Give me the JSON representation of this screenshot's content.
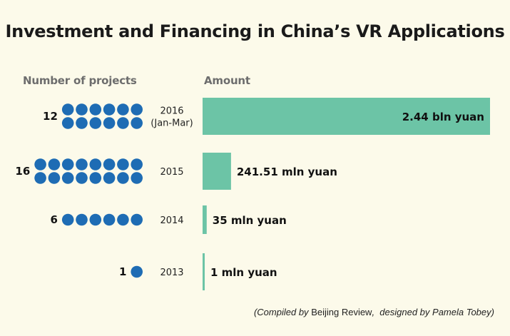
{
  "title": "Investment and Financing in China’s VR Applications",
  "headers": {
    "projects": "Number of projects",
    "amount": "Amount"
  },
  "credit": {
    "compiled_prefix": "(Compiled by",
    "source": "Beijing Review",
    "designed_by": "designed by Pamela Tobey",
    "suffix": ")"
  },
  "colors": {
    "dot": "#1e6cb4",
    "bar": "#6cc4a6",
    "background": "#fcfaea"
  },
  "chart_data": {
    "type": "bar",
    "orientation": "horizontal",
    "categories": [
      "2016 (Jan-Mar)",
      "2015",
      "2014",
      "2013"
    ],
    "year_labels": [
      [
        "2016",
        "(Jan-Mar)"
      ],
      [
        "2015"
      ],
      [
        "2014"
      ],
      [
        "2013"
      ]
    ],
    "series": [
      {
        "name": "Number of projects",
        "values": [
          12,
          16,
          6,
          1
        ],
        "labels": [
          "12",
          "16",
          "6",
          "1"
        ]
      },
      {
        "name": "Amount",
        "values": [
          2440,
          241.51,
          35,
          1
        ],
        "unit": "mln yuan",
        "labels": [
          "2.44 bln yuan",
          "241.51 mln yuan",
          "35 mln yuan",
          "1 mln yuan"
        ]
      }
    ]
  }
}
